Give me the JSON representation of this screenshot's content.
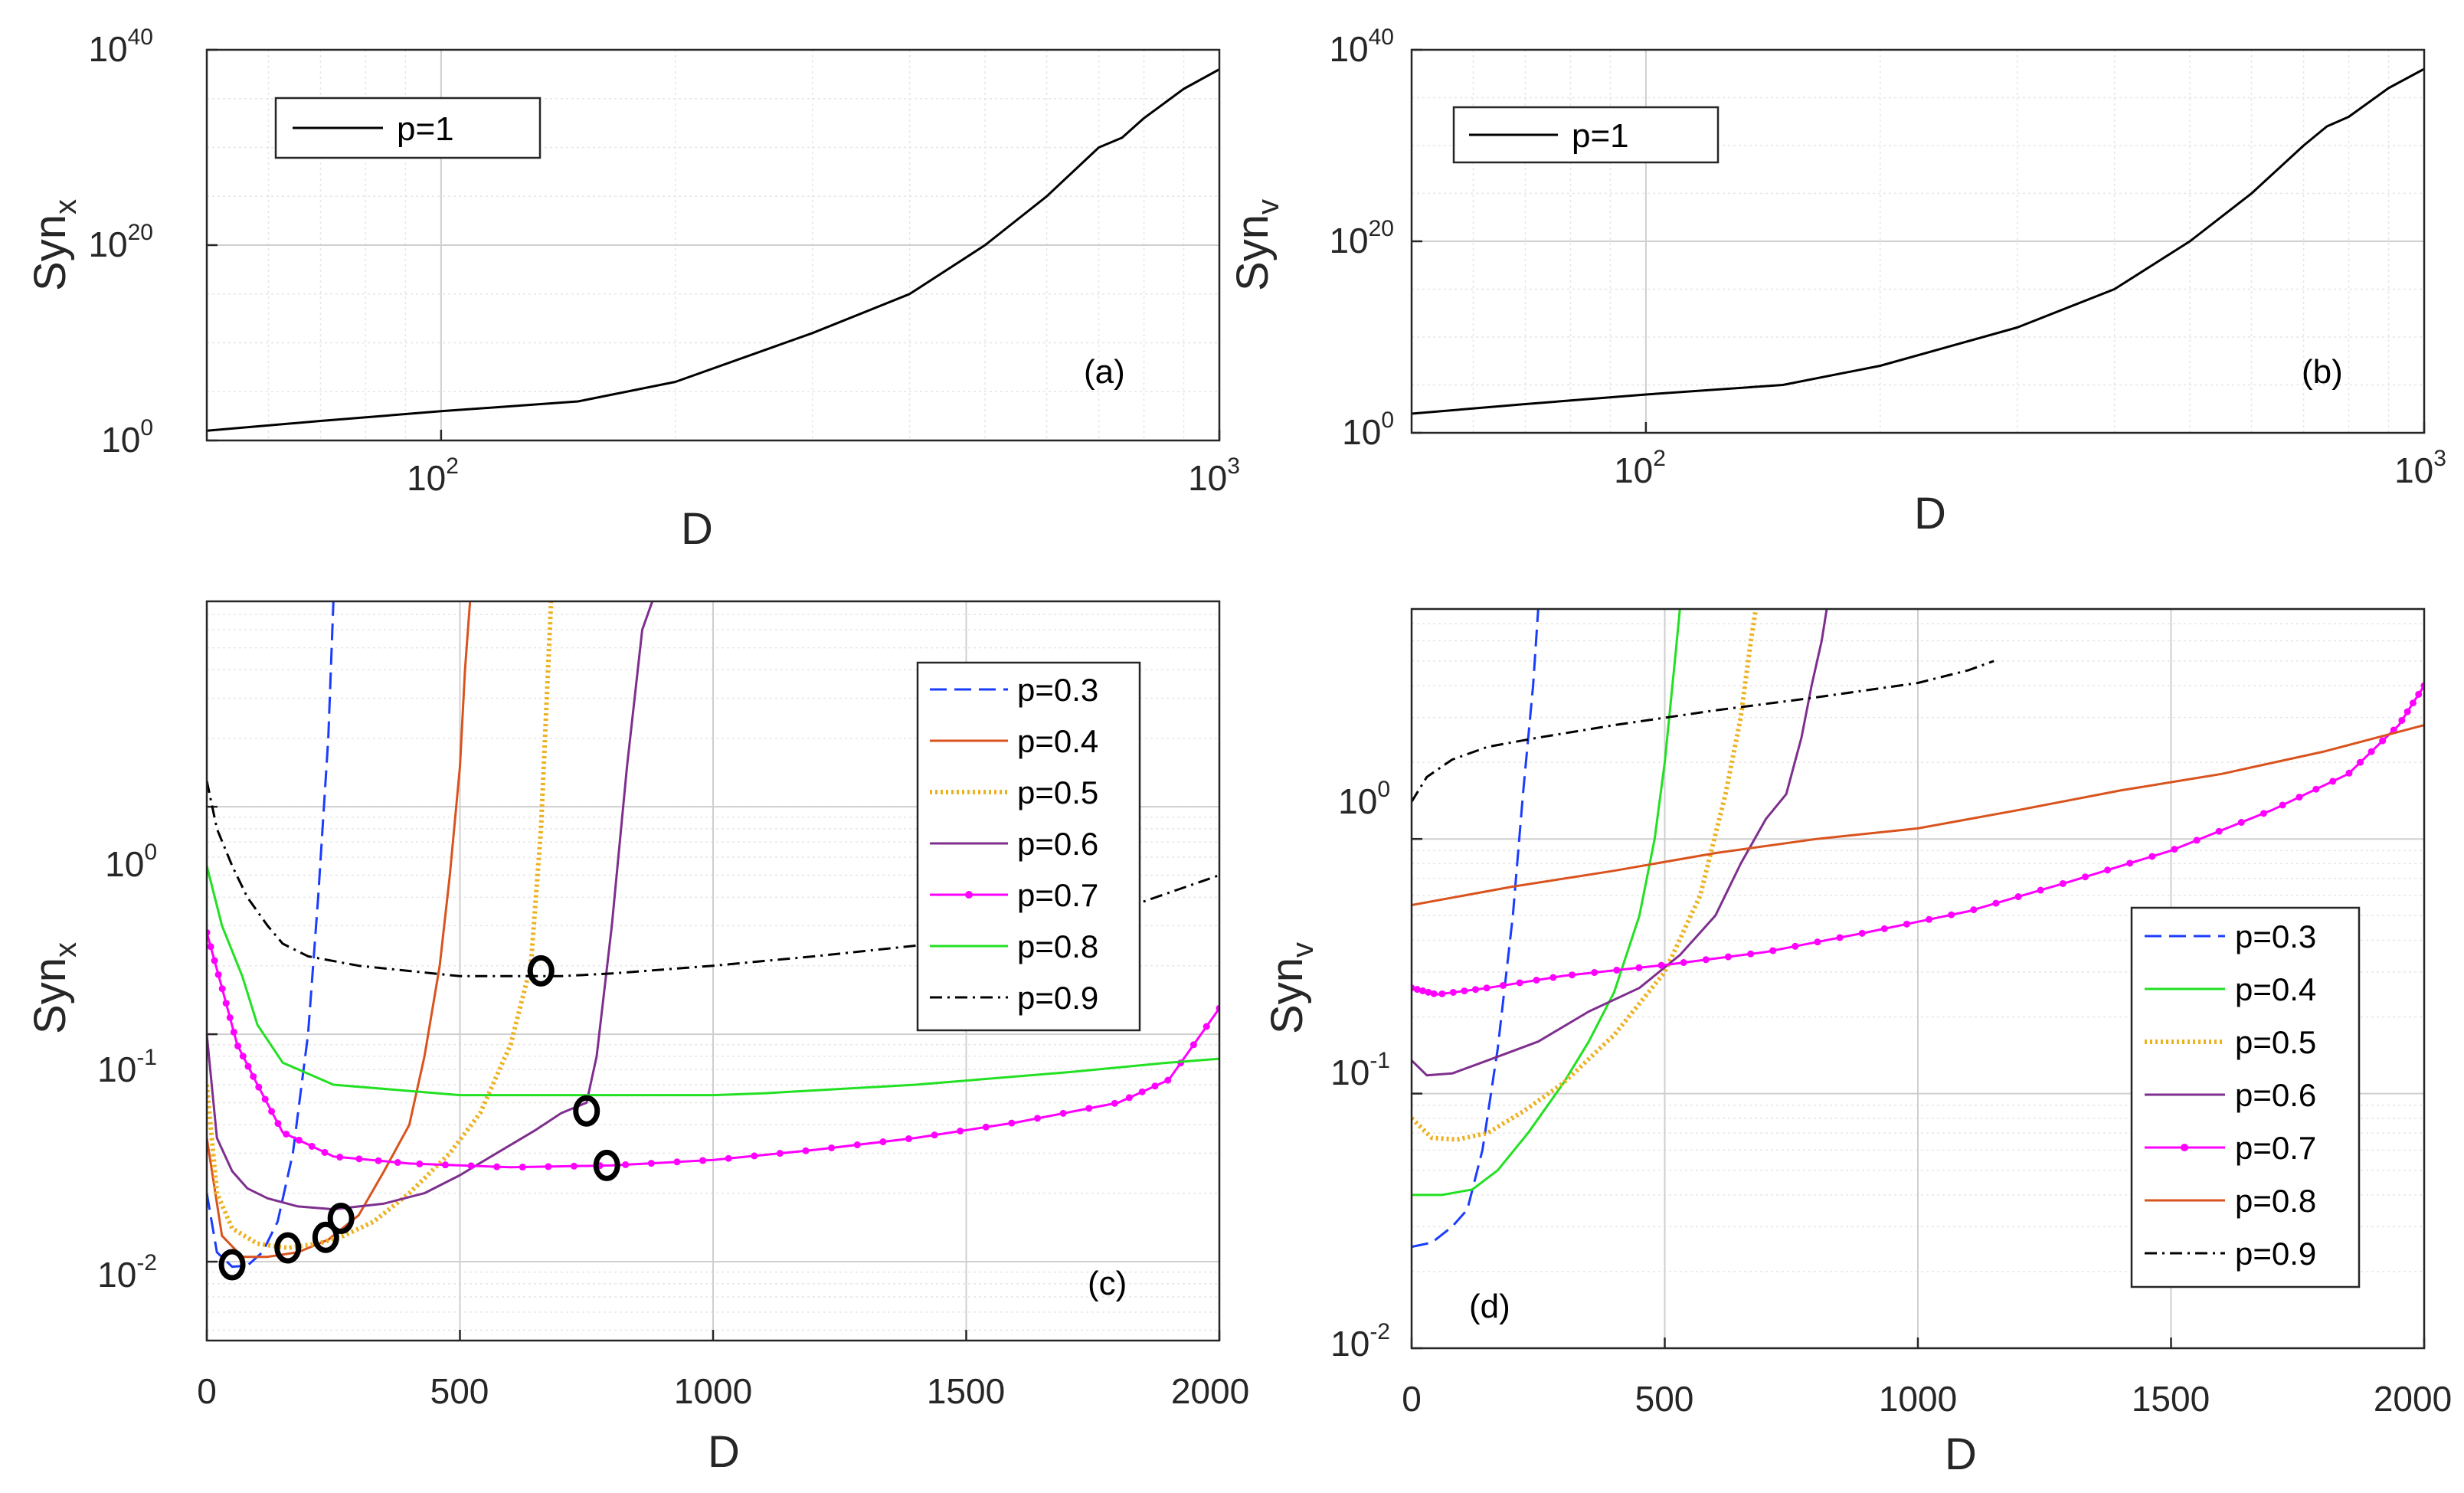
{
  "colors": {
    "axis": "#262626",
    "grid": "#cfcfcf",
    "minor_grid": "#e6e6e6",
    "black": "#000000",
    "blue": "#1a3cff",
    "orange": "#d9531e",
    "gold": "#edb120",
    "purple": "#7e2f8e",
    "magenta": "#ff00ff",
    "green": "#22e022"
  },
  "chart_data": [
    {
      "panel": "(a)",
      "type": "line",
      "xscale": "log",
      "yscale": "log",
      "xlabel": "D",
      "ylabel": {
        "base": "Syn",
        "sub": "x"
      },
      "xlim": [
        50,
        1000
      ],
      "ylim": [
        1,
        1e+40
      ],
      "xticks": [
        {
          "value": 100,
          "base": "10",
          "exp": "2"
        },
        {
          "value": 1000,
          "base": "10",
          "exp": "3"
        }
      ],
      "yticks": [
        {
          "value": 1,
          "base": "10",
          "exp": "0"
        },
        {
          "value": 1e+20,
          "base": "10",
          "exp": "20"
        },
        {
          "value": 1e+40,
          "base": "10",
          "exp": "40"
        }
      ],
      "legend": {
        "position": "top-left"
      },
      "series": [
        {
          "name": "p=1",
          "color": "black",
          "style": "solid",
          "x": [
            50,
            70,
            100,
            150,
            200,
            300,
            400,
            500,
            600,
            700,
            750,
            800,
            900,
            1000
          ],
          "y": [
            10,
            100.0,
            1000.0,
            10000.0,
            1000000.0,
            100000000000.0,
            1000000000000000.0,
            1e+20,
            1e+25,
            1e+30,
            1e+31,
            1e+33,
            1e+36,
            1e+38
          ]
        }
      ]
    },
    {
      "panel": "(b)",
      "type": "line",
      "xscale": "log",
      "yscale": "log",
      "xlabel": "D",
      "ylabel": {
        "base": "Syn",
        "sub": "v"
      },
      "xlim": [
        50,
        1000
      ],
      "ylim": [
        1,
        1e+40
      ],
      "xticks": [
        {
          "value": 100,
          "base": "10",
          "exp": "2"
        },
        {
          "value": 1000,
          "base": "10",
          "exp": "3"
        }
      ],
      "yticks": [
        {
          "value": 1,
          "base": "10",
          "exp": "0"
        },
        {
          "value": 1e+20,
          "base": "10",
          "exp": "20"
        },
        {
          "value": 1e+40,
          "base": "10",
          "exp": "40"
        }
      ],
      "legend": {
        "position": "top-left"
      },
      "series": [
        {
          "name": "p=1",
          "color": "black",
          "style": "solid",
          "x": [
            50,
            70,
            100,
            150,
            200,
            300,
            400,
            500,
            600,
            700,
            750,
            800,
            900,
            1000
          ],
          "y": [
            100,
            1000.0,
            10000.0,
            100000.0,
            10000000.0,
            100000000000.0,
            1000000000000000.0,
            1e+20,
            1e+25,
            1e+30,
            1e+32,
            1e+33,
            1e+36,
            1e+38
          ]
        }
      ]
    },
    {
      "panel": "(c)",
      "type": "line",
      "xscale": "linear",
      "yscale": "log",
      "xlabel": "D",
      "ylabel": {
        "base": "Syn",
        "sub": "x"
      },
      "xlim": [
        0,
        2000
      ],
      "ylim": [
        0.0045,
        8
      ],
      "xticks": [
        {
          "value": 0,
          "label": "0"
        },
        {
          "value": 500,
          "label": "500"
        },
        {
          "value": 1000,
          "label": "1000"
        },
        {
          "value": 1500,
          "label": "1500"
        },
        {
          "value": 2000,
          "label": "2000"
        }
      ],
      "yticks": [
        {
          "value": 0.01,
          "base": "10",
          "exp": "-2"
        },
        {
          "value": 0.1,
          "base": "10",
          "exp": "-1"
        },
        {
          "value": 1,
          "base": "10",
          "exp": "0"
        }
      ],
      "legend": {
        "position": "right"
      },
      "series": [
        {
          "name": "p=0.3",
          "color": "blue",
          "style": "dashed",
          "x": [
            0,
            20,
            50,
            80,
            110,
            140,
            170,
            200,
            220,
            240,
            250
          ],
          "y": [
            0.02,
            0.011,
            0.0095,
            0.0096,
            0.011,
            0.015,
            0.03,
            0.1,
            0.4,
            2,
            8
          ]
        },
        {
          "name": "p=0.4",
          "color": "orange",
          "style": "solid",
          "x": [
            0,
            30,
            70,
            120,
            180,
            240,
            300,
            350,
            400,
            430,
            460,
            480,
            500,
            510,
            520
          ],
          "y": [
            0.035,
            0.013,
            0.0105,
            0.0105,
            0.011,
            0.0125,
            0.016,
            0.025,
            0.04,
            0.08,
            0.2,
            0.5,
            1.5,
            4,
            8
          ]
        },
        {
          "name": "p=0.5",
          "color": "gold",
          "style": "dotted",
          "x": [
            0,
            20,
            50,
            100,
            160,
            220,
            270,
            330,
            400,
            480,
            540,
            600,
            640,
            660,
            680
          ],
          "y": [
            0.06,
            0.02,
            0.014,
            0.012,
            0.0115,
            0.012,
            0.013,
            0.015,
            0.02,
            0.03,
            0.045,
            0.09,
            0.2,
            0.8,
            8
          ]
        },
        {
          "name": "p=0.6",
          "color": "purple",
          "style": "solid",
          "x": [
            0,
            20,
            50,
            80,
            120,
            180,
            250,
            350,
            430,
            500,
            550,
            650,
            700,
            750,
            770,
            800,
            830,
            860,
            880
          ],
          "y": [
            0.1,
            0.035,
            0.025,
            0.021,
            0.019,
            0.0175,
            0.017,
            0.018,
            0.02,
            0.024,
            0.028,
            0.038,
            0.045,
            0.05,
            0.08,
            0.3,
            1.5,
            6,
            8
          ]
        },
        {
          "name": "p=0.7",
          "color": "magenta",
          "style": "marker",
          "x": [
            0,
            30,
            60,
            100,
            150,
            250,
            400,
            600,
            800,
            1000,
            1200,
            1400,
            1600,
            1800,
            1900,
            2000
          ],
          "y": [
            0.28,
            0.16,
            0.09,
            0.06,
            0.037,
            0.029,
            0.027,
            0.026,
            0.0265,
            0.028,
            0.031,
            0.035,
            0.041,
            0.05,
            0.063,
            0.13
          ]
        },
        {
          "name": "p=0.8",
          "color": "green",
          "style": "solid",
          "x": [
            0,
            30,
            70,
            100,
            150,
            250,
            500,
            1000,
            1100,
            1400,
            1700,
            1900,
            2000
          ],
          "y": [
            0.55,
            0.3,
            0.18,
            0.11,
            0.075,
            0.06,
            0.054,
            0.054,
            0.055,
            0.06,
            0.068,
            0.075,
            0.078
          ]
        },
        {
          "name": "p=0.9",
          "color": "black",
          "style": "dashdot",
          "x": [
            0,
            20,
            50,
            80,
            120,
            150,
            200,
            300,
            500,
            700,
            800,
            1000,
            1200,
            1400,
            1600,
            1800,
            2000
          ],
          "y": [
            1.3,
            0.8,
            0.55,
            0.4,
            0.3,
            0.25,
            0.22,
            0.2,
            0.18,
            0.18,
            0.185,
            0.2,
            0.22,
            0.245,
            0.27,
            0.35,
            0.5
          ]
        }
      ],
      "markers": [
        {
          "x": 50,
          "y": 0.0097
        },
        {
          "x": 160,
          "y": 0.0115
        },
        {
          "x": 235,
          "y": 0.0128
        },
        {
          "x": 265,
          "y": 0.0155
        },
        {
          "x": 660,
          "y": 0.19
        },
        {
          "x": 750,
          "y": 0.046
        },
        {
          "x": 790,
          "y": 0.0265
        }
      ]
    },
    {
      "panel": "(d)",
      "type": "line",
      "xscale": "linear",
      "yscale": "log",
      "xlabel": "D",
      "ylabel": {
        "base": "Syn",
        "sub": "v"
      },
      "xlim": [
        0,
        2000
      ],
      "ylim": [
        0.01,
        8
      ],
      "xticks": [
        {
          "value": 0,
          "label": "0"
        },
        {
          "value": 500,
          "label": "500"
        },
        {
          "value": 1000,
          "label": "1000"
        },
        {
          "value": 1500,
          "label": "1500"
        },
        {
          "value": 2000,
          "label": "2000"
        }
      ],
      "yticks": [
        {
          "value": 0.01,
          "base": "10",
          "exp": "-2"
        },
        {
          "value": 0.1,
          "base": "10",
          "exp": "-1"
        },
        {
          "value": 1,
          "base": "10",
          "exp": "0"
        }
      ],
      "legend": {
        "position": "bottom-right"
      },
      "series": [
        {
          "name": "p=0.3",
          "color": "blue",
          "style": "dashed",
          "x": [
            0,
            40,
            80,
            110,
            140,
            170,
            200,
            220,
            240,
            250
          ],
          "y": [
            0.025,
            0.026,
            0.03,
            0.035,
            0.06,
            0.15,
            0.5,
            1.5,
            4,
            8
          ]
        },
        {
          "name": "p=0.4",
          "color": "green",
          "style": "solid",
          "x": [
            0,
            60,
            120,
            170,
            230,
            300,
            350,
            400,
            450,
            480,
            500,
            520,
            530
          ],
          "y": [
            0.04,
            0.04,
            0.042,
            0.05,
            0.07,
            0.11,
            0.16,
            0.25,
            0.5,
            1,
            2,
            5,
            8
          ]
        },
        {
          "name": "p=0.5",
          "color": "gold",
          "style": "dotted",
          "x": [
            0,
            40,
            90,
            150,
            220,
            300,
            400,
            500,
            570,
            620,
            650,
            670,
            680
          ],
          "y": [
            0.08,
            0.067,
            0.066,
            0.07,
            0.085,
            0.11,
            0.17,
            0.3,
            0.6,
            1.5,
            3,
            6,
            8
          ]
        },
        {
          "name": "p=0.6",
          "color": "purple",
          "style": "solid",
          "x": [
            0,
            30,
            80,
            150,
            250,
            350,
            450,
            530,
            600,
            650,
            700,
            740,
            770,
            790,
            810,
            820
          ],
          "y": [
            0.135,
            0.118,
            0.12,
            0.135,
            0.16,
            0.21,
            0.26,
            0.35,
            0.5,
            0.8,
            1.2,
            1.5,
            2.5,
            4,
            6,
            8
          ]
        },
        {
          "name": "p=0.7",
          "color": "magenta",
          "style": "marker",
          "x": [
            0,
            50,
            150,
            300,
            500,
            700,
            900,
            1100,
            1300,
            1500,
            1700,
            1850,
            1950,
            2000
          ],
          "y": [
            0.26,
            0.245,
            0.26,
            0.29,
            0.32,
            0.36,
            0.43,
            0.52,
            0.68,
            0.9,
            1.3,
            1.8,
            2.8,
            4
          ]
        },
        {
          "name": "p=0.8",
          "color": "orange",
          "style": "solid",
          "x": [
            0,
            200,
            400,
            600,
            800,
            1000,
            1200,
            1400,
            1600,
            1800,
            2000
          ],
          "y": [
            0.55,
            0.65,
            0.75,
            0.88,
            1.0,
            1.1,
            1.3,
            1.55,
            1.8,
            2.2,
            2.8
          ]
        },
        {
          "name": "p=0.9",
          "color": "black",
          "style": "dashdot",
          "x": [
            0,
            30,
            80,
            150,
            250,
            400,
            600,
            800,
            1000,
            1100,
            1150
          ],
          "y": [
            1.4,
            1.75,
            2.05,
            2.3,
            2.5,
            2.8,
            3.2,
            3.6,
            4.1,
            4.6,
            5
          ]
        }
      ]
    }
  ],
  "panels": [
    {
      "xlabel": "D",
      "ylabel_base": "Syn",
      "ylabel_sub": "x",
      "panel_label": "(a)",
      "tick_x": [
        {
          "b": "10",
          "e": "2"
        },
        {
          "b": "10",
          "e": "3"
        }
      ],
      "tick_y": [
        {
          "b": "10",
          "e": "0"
        },
        {
          "b": "10",
          "e": "20"
        },
        {
          "b": "10",
          "e": "40"
        }
      ],
      "legend": [
        "p=1"
      ]
    },
    {
      "xlabel": "D",
      "ylabel_base": "Syn",
      "ylabel_sub": "v",
      "panel_label": "(b)",
      "tick_x": [
        {
          "b": "10",
          "e": "2"
        },
        {
          "b": "10",
          "e": "3"
        }
      ],
      "tick_y": [
        {
          "b": "10",
          "e": "0"
        },
        {
          "b": "10",
          "e": "20"
        },
        {
          "b": "10",
          "e": "40"
        }
      ],
      "legend": [
        "p=1"
      ]
    },
    {
      "xlabel": "D",
      "ylabel_base": "Syn",
      "ylabel_sub": "x",
      "panel_label": "(c)",
      "tick_x": [
        "0",
        "500",
        "1000",
        "1500",
        "2000"
      ],
      "tick_y": [
        {
          "b": "10",
          "e": "-2"
        },
        {
          "b": "10",
          "e": "-1"
        },
        {
          "b": "10",
          "e": "0"
        }
      ],
      "legend": [
        "p=0.3",
        "p=0.4",
        "p=0.5",
        "p=0.6",
        "p=0.7",
        "p=0.8",
        "p=0.9"
      ]
    },
    {
      "xlabel": "D",
      "ylabel_base": "Syn",
      "ylabel_sub": "v",
      "panel_label": "(d)",
      "tick_x": [
        "0",
        "500",
        "1000",
        "1500",
        "2000"
      ],
      "tick_y": [
        {
          "b": "10",
          "e": "-2"
        },
        {
          "b": "10",
          "e": "-1"
        },
        {
          "b": "10",
          "e": "0"
        }
      ],
      "legend": [
        "p=0.3",
        "p=0.4",
        "p=0.5",
        "p=0.6",
        "p=0.7",
        "p=0.8",
        "p=0.9"
      ]
    }
  ]
}
